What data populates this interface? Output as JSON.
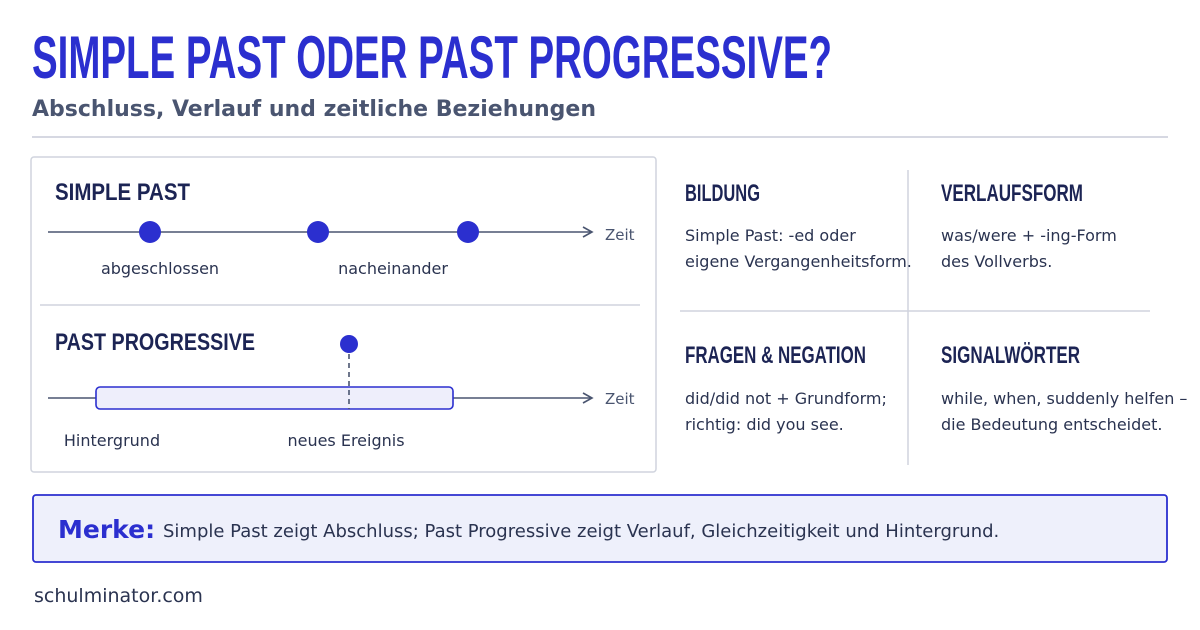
{
  "header": {
    "title": "SIMPLE PAST ODER PAST PROGRESSIVE?",
    "subtitle": "Abschluss, Verlauf und zeitliche Beziehungen"
  },
  "timelines": {
    "simple_past": {
      "title": "SIMPLE PAST",
      "axis_label": "Zeit",
      "labels": [
        "abgeschlossen",
        "nacheinander"
      ]
    },
    "past_progressive": {
      "title": "PAST PROGRESSIVE",
      "axis_label": "Zeit",
      "labels": [
        "Hintergrund",
        "neues Ereignis"
      ]
    }
  },
  "cards": [
    {
      "title": "BILDUNG",
      "lines": [
        "Simple Past: -ed oder",
        "eigene Vergangenheitsform."
      ]
    },
    {
      "title": "VERLAUFSFORM",
      "lines": [
        "was/were + -ing-Form",
        "des Vollverbs."
      ]
    },
    {
      "title": "FRAGEN & NEGATION",
      "lines": [
        "did/did not + Grundform;",
        "richtig: did you see."
      ]
    },
    {
      "title": "SIGNALWÖRTER",
      "lines": [
        "while, when, suddenly helfen –",
        "die Bedeutung entscheidet."
      ]
    }
  ],
  "note": {
    "label": "Merke:",
    "text": "Simple Past zeigt Abschluss; Past Progressive zeigt Verlauf, Gleichzeitigkeit und Hintergrund."
  },
  "footer": {
    "text": "schulminator.com"
  }
}
